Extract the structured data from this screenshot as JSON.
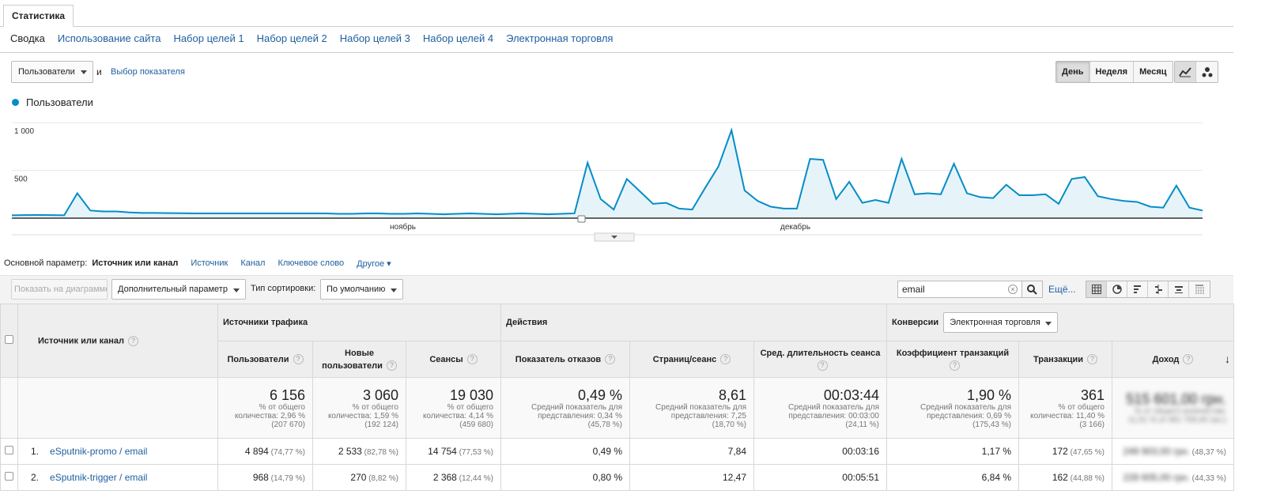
{
  "top_tab": "Статистика",
  "subnav": [
    "Сводка",
    "Использование сайта",
    "Набор целей 1",
    "Набор целей 2",
    "Набор целей 3",
    "Набор целей 4",
    "Электронная торговля"
  ],
  "metric_select": "Пользователи",
  "and_text": "и",
  "choose_metric": "Выбор показателя",
  "period": [
    "День",
    "Неделя",
    "Месяц"
  ],
  "legend": "Пользователи",
  "colors": {
    "line": "#058dc7",
    "fill": "#e6f4fa",
    "link": "#1f5fa0"
  },
  "chart_data": {
    "type": "area",
    "series": [
      {
        "name": "Пользователи",
        "values": [
          30,
          32,
          33,
          32,
          30,
          260,
          80,
          70,
          70,
          60,
          55,
          55,
          53,
          52,
          50,
          50,
          50,
          50,
          50,
          50,
          50,
          50,
          50,
          50,
          50,
          45,
          45,
          50,
          50,
          45,
          45,
          50,
          45,
          40,
          45,
          50,
          45,
          40,
          45,
          50,
          45,
          40,
          45,
          50,
          580,
          200,
          90,
          410,
          280,
          150,
          160,
          100,
          90,
          320,
          540,
          920,
          290,
          180,
          120,
          100,
          100,
          620,
          610,
          200,
          380,
          160,
          190,
          160,
          620,
          250,
          260,
          250,
          570,
          260,
          220,
          210,
          350,
          240,
          240,
          250,
          150,
          410,
          430,
          230,
          200,
          180,
          170,
          120,
          110,
          340,
          110,
          80
        ]
      }
    ],
    "y_ticks": [
      "1 000",
      "500"
    ],
    "ylim": [
      0,
      1100
    ],
    "x_labels": [
      "ноябрь",
      "декабрь"
    ]
  },
  "primary_dimension": {
    "label": "Основной параметр:",
    "active": "Источник или канал",
    "options": [
      "Источник",
      "Канал",
      "Ключевое слово",
      "Другое"
    ]
  },
  "toolbar": {
    "plot_button": "Показать на диаграмме",
    "secondary_dim": "Дополнительный параметр",
    "sort_label": "Тип сортировки:",
    "sort_value": "По умолчанию",
    "search_value": "email",
    "more": "Ещё..."
  },
  "table": {
    "dim_header": "Источник или канал",
    "group_traffic": "Источники трафика",
    "group_actions": "Действия",
    "conv_label": "Конверсии",
    "conv_select": "Электронная торговля",
    "columns": [
      "Пользователи",
      "Новые пользователи",
      "Сеансы",
      "Показатель отказов",
      "Страниц/сеанс",
      "Сред. длительность сеанса",
      "Коэффициент транзакций",
      "Транзакции",
      "Доход"
    ],
    "totals": [
      {
        "big": "6 156",
        "sub": [
          "% от общего",
          "количества: 2,96 %",
          "(207 670)"
        ]
      },
      {
        "big": "3 060",
        "sub": [
          "% от общего",
          "количества: 1,59 %",
          "(192 124)"
        ]
      },
      {
        "big": "19 030",
        "sub": [
          "% от общего",
          "количества: 4,14 %",
          "(459 680)"
        ]
      },
      {
        "big": "0,49 %",
        "sub": [
          "Средний показатель для",
          "представления: 0,34 %",
          "(45,78 %)"
        ]
      },
      {
        "big": "8,61",
        "sub": [
          "Средний показатель для",
          "представления: 7,25",
          "(18,70 %)"
        ]
      },
      {
        "big": "00:03:44",
        "sub": [
          "Средний показатель для",
          "представления: 00:03:00",
          "(24,11 %)"
        ]
      },
      {
        "big": "1,90 %",
        "sub": [
          "Средний показатель для",
          "представления: 0,69 %",
          "(175,43 %)"
        ]
      },
      {
        "big": "361",
        "sub": [
          "% от общего",
          "количества: 11,40 %",
          "(3 166)"
        ]
      },
      {
        "big": "515 601,00 грн.",
        "sub": [
          "% от общего количества:",
          "11,51 % (4 481 709,00 грн.)",
          ""
        ]
      }
    ],
    "rows": [
      {
        "num": "1.",
        "name": "eSputnik-promo / email",
        "cells": [
          [
            "4 894",
            "(74,77 %)"
          ],
          [
            "2 533",
            "(82,78 %)"
          ],
          [
            "14 754",
            "(77,53 %)"
          ],
          [
            "0,49 %",
            ""
          ],
          [
            "7,84",
            ""
          ],
          [
            "00:03:16",
            ""
          ],
          [
            "1,17 %",
            ""
          ],
          [
            "172",
            "(47,65 %)"
          ],
          [
            "249 903,00 грн.",
            "(48,37 %)"
          ]
        ]
      },
      {
        "num": "2.",
        "name": "eSputnik-trigger / email",
        "cells": [
          [
            "968",
            "(14,79 %)"
          ],
          [
            "270",
            "(8,82 %)"
          ],
          [
            "2 368",
            "(12,44 %)"
          ],
          [
            "0,80 %",
            ""
          ],
          [
            "12,47",
            ""
          ],
          [
            "00:05:51",
            ""
          ],
          [
            "6,84 %",
            ""
          ],
          [
            "162",
            "(44,88 %)"
          ],
          [
            "228 605,00 грн.",
            "(44,33 %)"
          ]
        ]
      }
    ]
  }
}
